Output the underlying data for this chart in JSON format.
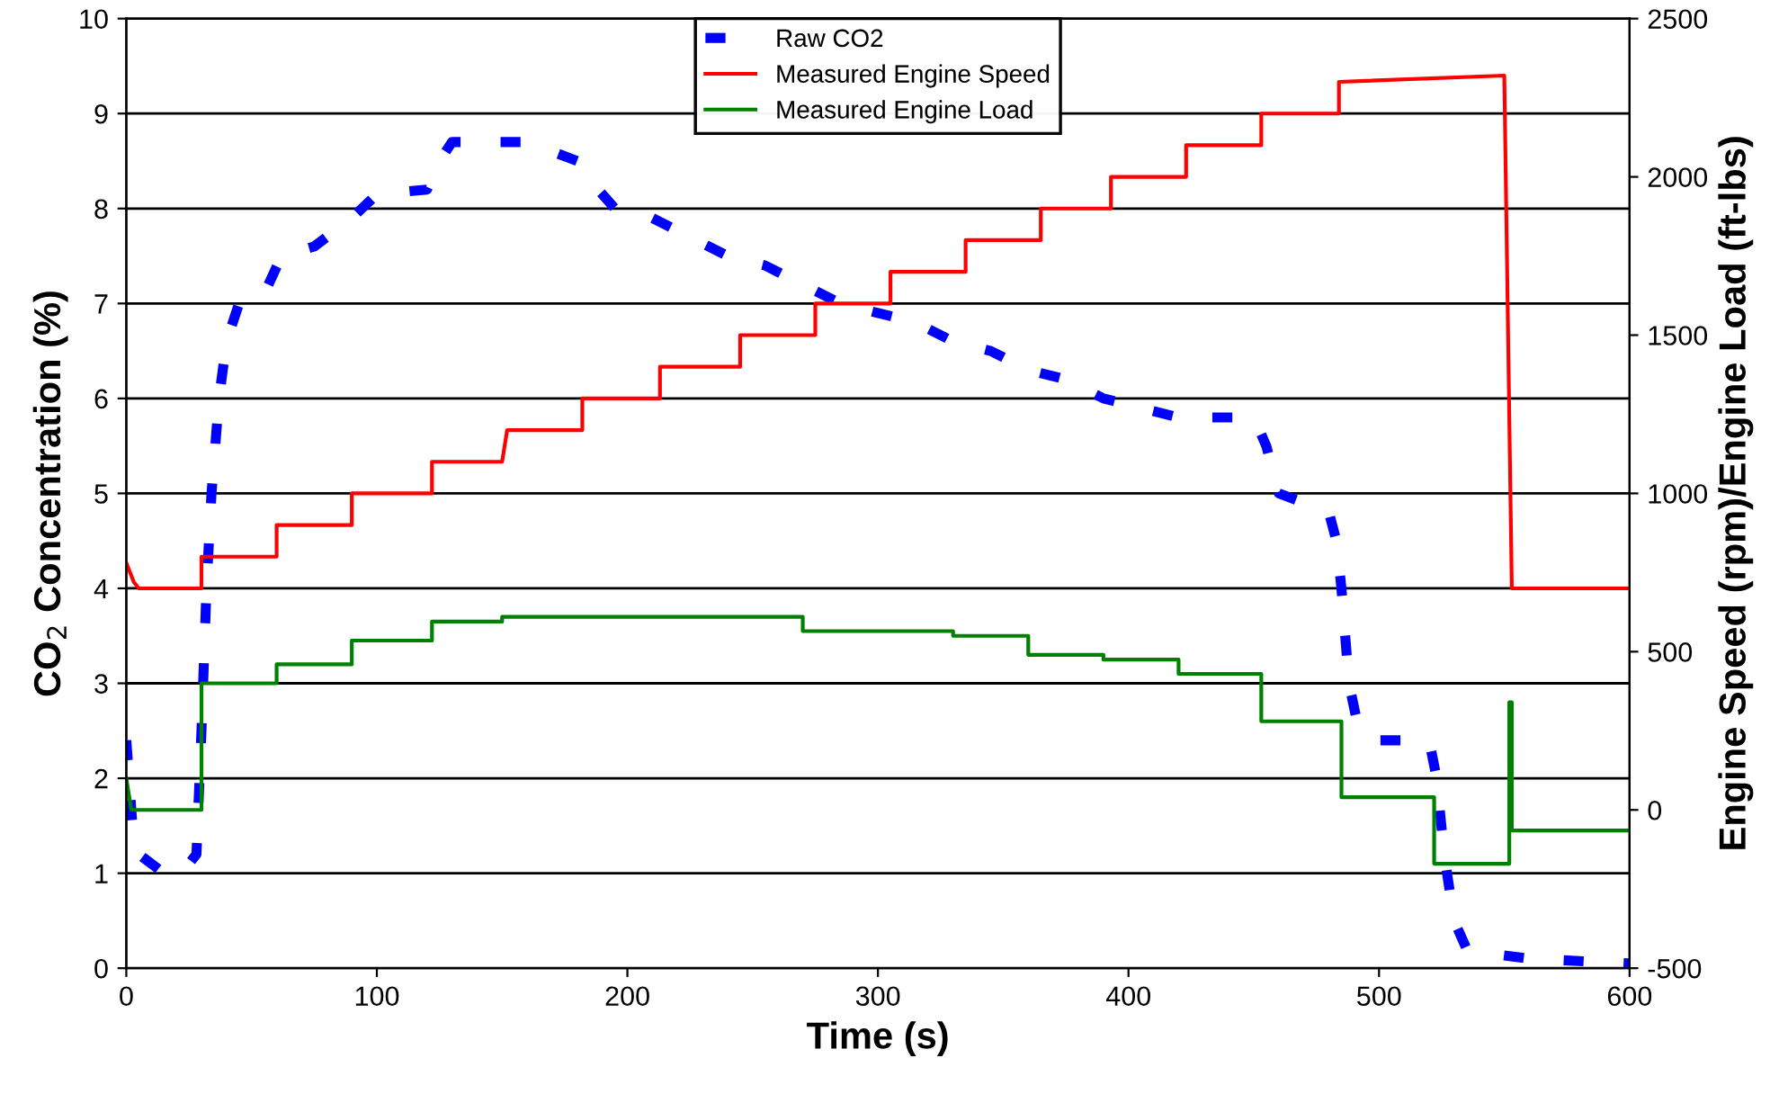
{
  "chart_data": {
    "type": "line",
    "xlabel": "Time (s)",
    "ylabel": "CO$_{2}$ Concentration (%)",
    "y2label": "Engine Speed (rpm)/Engine Load (ft-lbs)",
    "xlim": [
      0,
      600
    ],
    "xticks": [
      0,
      100,
      200,
      300,
      400,
      500,
      600
    ],
    "ylim": [
      0,
      10
    ],
    "yticks": [
      0,
      1,
      2,
      3,
      4,
      5,
      6,
      7,
      8,
      9,
      10
    ],
    "y2lim": [
      -500,
      2500
    ],
    "y2ticks": [
      -500,
      0,
      500,
      1000,
      1500,
      2000,
      2500
    ],
    "grid": "y",
    "legend": "top",
    "series": [
      {
        "name": "Raw CO2",
        "color": "#0000ff",
        "line_style": "dashed",
        "x": [
          0,
          3,
          5,
          15,
          22,
          28,
          30,
          32,
          34,
          37,
          40,
          45,
          55,
          62,
          75,
          90,
          100,
          120,
          125,
          130,
          160,
          180,
          185,
          195,
          210,
          225,
          240,
          255,
          270,
          285,
          300,
          315,
          330,
          345,
          360,
          375,
          390,
          405,
          420,
          435,
          450,
          455,
          460,
          470,
          480,
          483,
          485,
          488,
          492,
          500,
          520,
          523,
          526,
          530,
          535,
          545,
          560,
          600
        ],
        "values": [
          2.4,
          1.3,
          1.2,
          1.0,
          1.0,
          1.2,
          2.5,
          4.0,
          5.0,
          6.0,
          6.6,
          7.0,
          7.1,
          7.5,
          7.6,
          7.9,
          8.15,
          8.2,
          8.5,
          8.7,
          8.7,
          8.5,
          8.3,
          8.0,
          7.9,
          7.7,
          7.5,
          7.4,
          7.2,
          7.0,
          6.9,
          6.8,
          6.6,
          6.5,
          6.3,
          6.2,
          6.0,
          5.9,
          5.8,
          5.8,
          5.8,
          5.5,
          5.0,
          4.9,
          4.8,
          4.5,
          4.0,
          3.0,
          2.5,
          2.4,
          2.4,
          2.0,
          1.2,
          0.5,
          0.2,
          0.15,
          0.1,
          0.05
        ]
      },
      {
        "name": "Measured Engine Speed",
        "color": "#ff0000",
        "axis": "y2",
        "x": [
          0,
          3,
          5,
          30,
          30,
          60,
          60,
          90,
          90,
          122,
          122,
          150,
          152,
          182,
          182,
          213,
          213,
          245,
          245,
          275,
          275,
          305,
          305,
          335,
          335,
          365,
          365,
          393,
          393,
          423,
          423,
          453,
          453,
          484,
          484,
          550,
          553,
          600
        ],
        "values": [
          780,
          720,
          700,
          700,
          800,
          800,
          900,
          900,
          1000,
          1000,
          1100,
          1100,
          1200,
          1200,
          1300,
          1300,
          1400,
          1400,
          1500,
          1500,
          1600,
          1600,
          1700,
          1700,
          1800,
          1800,
          1900,
          1900,
          2000,
          2000,
          2100,
          2100,
          2200,
          2200,
          2300,
          2320,
          700,
          700
        ]
      },
      {
        "name": "Measured Engine Load",
        "color": "#008000",
        "axis": "y2",
        "x": [
          0,
          2,
          30,
          30,
          60,
          60,
          90,
          90,
          122,
          122,
          150,
          150,
          270,
          270,
          330,
          330,
          360,
          360,
          390,
          390,
          420,
          420,
          453,
          453,
          485,
          485,
          522,
          522,
          552,
          552,
          553,
          553,
          600
        ],
        "values": [
          100,
          0,
          0,
          400,
          400,
          460,
          460,
          535,
          535,
          595,
          595,
          610,
          610,
          565,
          565,
          550,
          550,
          490,
          490,
          475,
          475,
          430,
          430,
          280,
          280,
          40,
          40,
          -170,
          -170,
          340,
          340,
          -65,
          -65
        ]
      }
    ]
  }
}
